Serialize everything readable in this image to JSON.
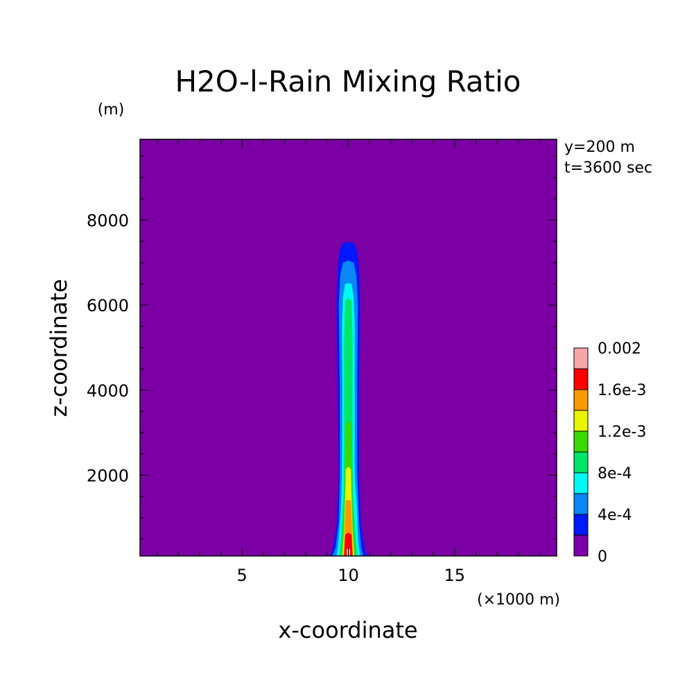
{
  "chart_data": {
    "type": "heatmap",
    "title": "H2O-l-Rain Mixing Ratio",
    "xlabel": "x-coordinate",
    "ylabel": "z-coordinate",
    "x_unit": "(×1000 m)",
    "y_unit": "(m)",
    "annotations": [
      "y=200 m",
      "t=3600 sec"
    ],
    "xlim": [
      0.2,
      19.8
    ],
    "ylim": [
      100,
      9900
    ],
    "x_ticks": [
      5,
      10,
      15
    ],
    "x_tick_labels": [
      "5",
      "10",
      "15"
    ],
    "y_ticks": [
      2000,
      4000,
      6000,
      8000
    ],
    "y_tick_labels": [
      "2000",
      "4000",
      "6000",
      "8000"
    ],
    "grid": false,
    "background_color": "#7b00a6",
    "colorbar": {
      "levels": [
        0,
        0.0002,
        0.0004,
        0.0006,
        0.0008,
        0.001,
        0.0012,
        0.0014,
        0.0016,
        0.0018,
        0.002
      ],
      "colors": [
        "#7b00a6",
        "#0018ff",
        "#0a86f7",
        "#00f8f2",
        "#00e66a",
        "#3ad900",
        "#e8f500",
        "#fa9800",
        "#ff0000",
        "#f7a6a6"
      ],
      "tick_labels": [
        {
          "level": 0,
          "label": "0"
        },
        {
          "level": 0.0004,
          "label": "4e-4"
        },
        {
          "level": 0.0008,
          "label": "8e-4"
        },
        {
          "level": 0.0012,
          "label": "1.2e-3"
        },
        {
          "level": 0.0016,
          "label": "1.6e-3"
        },
        {
          "level": 0.002,
          "label": "0.002"
        }
      ]
    },
    "contours": [
      {
        "level_index": 1,
        "color": "#0018ff",
        "points": [
          [
            9.1,
            100
          ],
          [
            9.25,
            200
          ],
          [
            9.45,
            800
          ],
          [
            9.55,
            2000
          ],
          [
            9.5,
            4000
          ],
          [
            9.45,
            6000
          ],
          [
            9.5,
            6900
          ],
          [
            9.6,
            7300
          ],
          [
            9.75,
            7470
          ],
          [
            10,
            7480
          ],
          [
            10.25,
            7470
          ],
          [
            10.4,
            7300
          ],
          [
            10.5,
            6900
          ],
          [
            10.55,
            6000
          ],
          [
            10.5,
            4000
          ],
          [
            10.5,
            2000
          ],
          [
            10.6,
            800
          ],
          [
            10.8,
            200
          ],
          [
            10.95,
            100
          ]
        ]
      },
      {
        "level_index": 2,
        "color": "#0a86f7",
        "points": [
          [
            9.25,
            100
          ],
          [
            9.4,
            300
          ],
          [
            9.55,
            900
          ],
          [
            9.6,
            2000
          ],
          [
            9.6,
            4000
          ],
          [
            9.55,
            6000
          ],
          [
            9.62,
            6700
          ],
          [
            9.75,
            7000
          ],
          [
            10,
            7050
          ],
          [
            10.25,
            7000
          ],
          [
            10.38,
            6700
          ],
          [
            10.45,
            6000
          ],
          [
            10.42,
            4000
          ],
          [
            10.42,
            2000
          ],
          [
            10.5,
            900
          ],
          [
            10.6,
            300
          ],
          [
            10.7,
            100
          ]
        ]
      },
      {
        "level_index": 3,
        "color": "#00f8f2",
        "points": [
          [
            9.45,
            100
          ],
          [
            9.55,
            500
          ],
          [
            9.65,
            1200
          ],
          [
            9.7,
            2000
          ],
          [
            9.72,
            4000
          ],
          [
            9.7,
            5500
          ],
          [
            9.75,
            6200
          ],
          [
            9.85,
            6500
          ],
          [
            10,
            6520
          ],
          [
            10.15,
            6500
          ],
          [
            10.25,
            6200
          ],
          [
            10.3,
            5500
          ],
          [
            10.3,
            4000
          ],
          [
            10.3,
            2000
          ],
          [
            10.4,
            1200
          ],
          [
            10.45,
            500
          ],
          [
            10.55,
            100
          ]
        ]
      },
      {
        "level_index": 4,
        "color": "#00e66a",
        "points": [
          [
            9.58,
            100
          ],
          [
            9.68,
            700
          ],
          [
            9.78,
            1600
          ],
          [
            9.8,
            3000
          ],
          [
            9.8,
            5200
          ],
          [
            9.85,
            6100
          ],
          [
            10,
            6170
          ],
          [
            10.15,
            6100
          ],
          [
            10.2,
            5200
          ],
          [
            10.2,
            3000
          ],
          [
            10.22,
            1600
          ],
          [
            10.32,
            700
          ],
          [
            10.42,
            100
          ]
        ]
      },
      {
        "level_index": 5,
        "color": "#3ad900",
        "points": [
          [
            9.68,
            100
          ],
          [
            9.78,
            900
          ],
          [
            9.85,
            2000
          ],
          [
            9.88,
            3200
          ],
          [
            10,
            3280
          ],
          [
            10.12,
            3200
          ],
          [
            10.15,
            2000
          ],
          [
            10.22,
            900
          ],
          [
            10.32,
            100
          ]
        ]
      },
      {
        "level_index": 6,
        "color": "#e8f500",
        "points": [
          [
            9.72,
            100
          ],
          [
            9.8,
            700
          ],
          [
            9.85,
            1500
          ],
          [
            9.88,
            2150
          ],
          [
            10,
            2200
          ],
          [
            10.12,
            2150
          ],
          [
            10.15,
            1500
          ],
          [
            10.2,
            700
          ],
          [
            10.28,
            100
          ]
        ]
      },
      {
        "level_index": 7,
        "color": "#fa9800",
        "points": [
          [
            9.77,
            100
          ],
          [
            9.82,
            600
          ],
          [
            9.85,
            1000
          ],
          [
            9.88,
            1400
          ],
          [
            10,
            1420
          ],
          [
            10.12,
            1400
          ],
          [
            10.15,
            1000
          ],
          [
            10.18,
            600
          ],
          [
            10.23,
            100
          ]
        ]
      },
      {
        "level_index": 8,
        "color": "#ff0000",
        "points": [
          [
            9.8,
            100
          ],
          [
            9.83,
            400
          ],
          [
            9.85,
            600
          ],
          [
            10,
            650
          ],
          [
            10.15,
            600
          ],
          [
            10.17,
            400
          ],
          [
            10.2,
            100
          ]
        ]
      },
      {
        "level_index": 9,
        "color": "#f7a6a6",
        "points": [
          [
            9.92,
            100
          ],
          [
            9.92,
            260
          ],
          [
            10,
            280
          ],
          [
            10.08,
            260
          ],
          [
            10.08,
            100
          ]
        ]
      }
    ]
  }
}
